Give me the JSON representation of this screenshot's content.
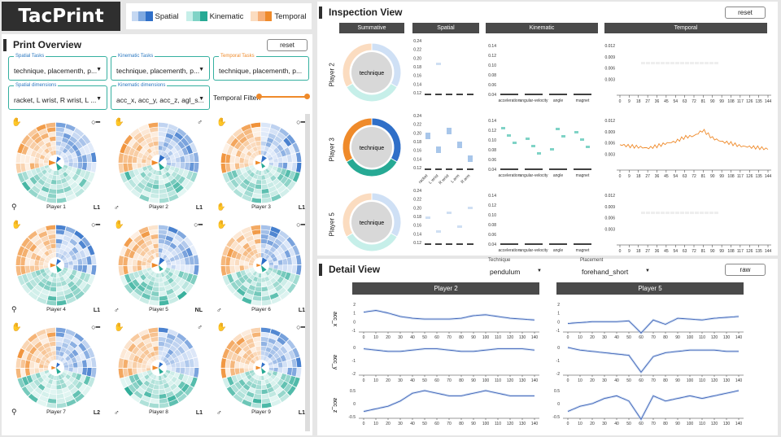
{
  "app": {
    "title": "TacPrint"
  },
  "legend": [
    {
      "label": "Spatial",
      "colors": [
        "#c5d8f2",
        "#7fa9e0",
        "#2f6fc8"
      ]
    },
    {
      "label": "Kinematic",
      "colors": [
        "#c6efe9",
        "#7fd3c6",
        "#26a994"
      ]
    },
    {
      "label": "Temporal",
      "colors": [
        "#fbdcc0",
        "#f6b07a",
        "#ef8a2a"
      ]
    }
  ],
  "overview": {
    "title": "Print Overview",
    "reset_label": "reset",
    "spatial_tasks": {
      "label": "Spatial Tasks",
      "value": "technique, placementh, p..."
    },
    "kinematic_tasks": {
      "label": "Kinematic Tasks",
      "value": "technique, placementh, p..."
    },
    "temporal_tasks": {
      "label": "Temporal Tasks",
      "value": "technique, placementh, p..."
    },
    "spatial_dims": {
      "label": "Spatial dimensions",
      "value": "racket, L wrist, R wrist, L ..."
    },
    "kinematic_dims": {
      "label": "Kinematic dimensions",
      "value": "acc_x, acc_y, acc_z, agl_s..."
    },
    "temporal_filter": "Temporal Filter:",
    "temporal_filter_level": 1.0,
    "players": [
      {
        "name": "Player 1",
        "level": "L1",
        "tl": "✋",
        "tr": "○━",
        "bl": "⚲"
      },
      {
        "name": "Player 2",
        "level": "L1",
        "tl": "✋",
        "tr": "♂",
        "bl": "♂"
      },
      {
        "name": "Player 3",
        "level": "L1",
        "tl": "✋",
        "tr": "○━",
        "bl": "✋"
      },
      {
        "name": "Player 4",
        "level": "L1",
        "tl": "✋",
        "tr": "○━",
        "bl": "⚲"
      },
      {
        "name": "Player 5",
        "level": "NL",
        "tl": "✋",
        "tr": "○━",
        "bl": "♂"
      },
      {
        "name": "Player 6",
        "level": "L1",
        "tl": "✋",
        "tr": "○━",
        "bl": "♂"
      },
      {
        "name": "Player 7",
        "level": "L2",
        "tl": "✋",
        "tr": "○━",
        "bl": "⚲"
      },
      {
        "name": "Player 8",
        "level": "L1",
        "tl": "✋",
        "tr": "♂",
        "bl": "♂"
      },
      {
        "name": "Player 9",
        "level": "L1",
        "tl": "✋",
        "tr": "○━",
        "bl": "♂"
      }
    ]
  },
  "inspection": {
    "title": "Inspection View",
    "reset_label": "reset",
    "columns": [
      "Summative",
      "Spatial",
      "Kinematic",
      "Temporal"
    ],
    "rows": [
      "Player 2",
      "Player 3",
      "Player 5"
    ],
    "center_label": "technique",
    "spatial_ticks": [
      "0.24",
      "0.22",
      "0.20",
      "0.18",
      "0.16",
      "0.14",
      "0.12"
    ],
    "spatial_cats": [
      "racket",
      "L wrist",
      "R wrist",
      "L arm",
      "R arm"
    ],
    "kinematic_ticks": [
      "0.14",
      "0.12",
      "0.10",
      "0.08",
      "0.06",
      "0.04"
    ],
    "kinematic_cats": [
      "acceleration",
      "angular-velocity",
      "angle",
      "magnet"
    ],
    "temporal_ticks": [
      "0.012",
      "0.009",
      "0.006",
      "0.003"
    ],
    "temporal_x": [
      "0",
      "9",
      "18",
      "27",
      "36",
      "45",
      "54",
      "63",
      "72",
      "81",
      "90",
      "99",
      "108",
      "117",
      "126",
      "135",
      "144"
    ]
  },
  "detail": {
    "title": "Detail View",
    "raw_label": "raw",
    "technique_label": "Technique",
    "technique_value": "pendulum",
    "placement_label": "Placement",
    "placement_value": "forehand_short",
    "players": [
      "Player 2",
      "Player 5"
    ],
    "metrics": [
      "acc_x",
      "acc_y",
      "acc_z"
    ],
    "x_ticks": [
      "0",
      "10",
      "20",
      "30",
      "40",
      "50",
      "60",
      "70",
      "80",
      "90",
      "100",
      "110",
      "120",
      "130",
      "140"
    ],
    "y_ticks": {
      "acc_x": [
        "2",
        "1",
        "0",
        "-1"
      ],
      "acc_y": [
        "0",
        "-1",
        "-2"
      ],
      "acc_z": [
        "0.5",
        "0",
        "-0.5"
      ]
    }
  },
  "chart_data": [
    {
      "type": "line",
      "title": "Player 3 Temporal",
      "x": [
        0,
        9,
        18,
        27,
        36,
        45,
        54,
        63,
        72,
        81,
        90,
        99,
        108,
        117,
        126,
        135,
        144
      ],
      "series": [
        {
          "values": [
            0.0065,
            0.0062,
            0.006,
            0.0057,
            0.0062,
            0.0068,
            0.0072,
            0.0082,
            0.0085,
            0.0098,
            0.008,
            0.0072,
            0.0068,
            0.0062,
            0.006,
            0.0058,
            0.0055
          ]
        }
      ],
      "ylim": [
        0,
        0.012
      ]
    },
    {
      "type": "line",
      "title": "Player 2",
      "x": [
        0,
        10,
        20,
        30,
        40,
        50,
        60,
        70,
        80,
        90,
        100,
        110,
        120,
        130,
        140
      ],
      "series": [
        {
          "name": "acc_x",
          "values": [
            1.1,
            1.3,
            1.0,
            0.6,
            0.4,
            0.3,
            0.3,
            0.3,
            0.4,
            0.7,
            0.8,
            0.6,
            0.4,
            0.3,
            0.2
          ]
        },
        {
          "name": "acc_y",
          "values": [
            -0.1,
            -0.2,
            -0.3,
            -0.3,
            -0.2,
            -0.1,
            -0.1,
            -0.2,
            -0.3,
            -0.3,
            -0.2,
            -0.1,
            -0.1,
            -0.1,
            -0.2
          ]
        },
        {
          "name": "acc_z",
          "values": [
            -0.3,
            -0.2,
            -0.1,
            0.1,
            0.4,
            0.5,
            0.4,
            0.3,
            0.3,
            0.4,
            0.5,
            0.4,
            0.3,
            0.3,
            0.3
          ]
        }
      ]
    },
    {
      "type": "line",
      "title": "Player 5",
      "x": [
        0,
        10,
        20,
        30,
        40,
        50,
        60,
        70,
        80,
        90,
        100,
        110,
        120,
        130,
        140
      ],
      "series": [
        {
          "name": "acc_x",
          "values": [
            -0.2,
            -0.1,
            0.0,
            0.0,
            0.0,
            0.1,
            -1.3,
            0.2,
            -0.3,
            0.4,
            0.3,
            0.2,
            0.4,
            0.5,
            0.6
          ]
        },
        {
          "name": "acc_y",
          "values": [
            0.0,
            -0.2,
            -0.3,
            -0.4,
            -0.5,
            -0.6,
            -1.9,
            -0.7,
            -0.4,
            -0.3,
            -0.2,
            -0.2,
            -0.2,
            -0.3,
            -0.3
          ]
        },
        {
          "name": "acc_z",
          "values": [
            -0.3,
            -0.1,
            0.0,
            0.2,
            0.3,
            0.1,
            -0.6,
            0.3,
            0.1,
            0.2,
            0.3,
            0.2,
            0.3,
            0.4,
            0.5
          ]
        }
      ]
    }
  ]
}
